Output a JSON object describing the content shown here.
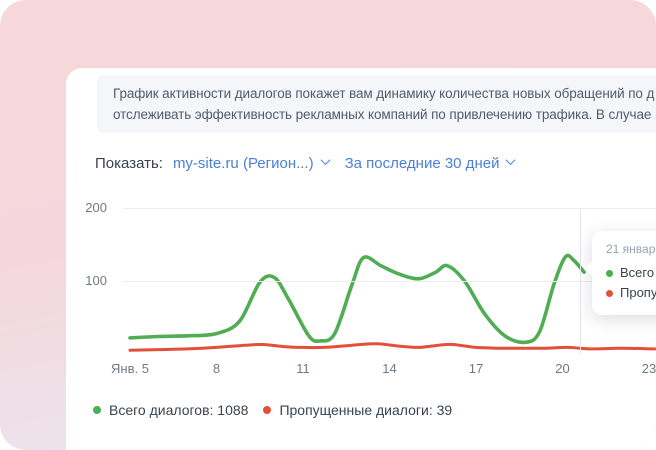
{
  "description": {
    "line1": "График активности диалогов покажет вам динамику количества новых обращений по д",
    "line2": "отслеживать эффективность рекламных компаний по привлечению трафика. В случае"
  },
  "filters": {
    "label": "Показать:",
    "site_selector": "my-site.ru (Регион...)",
    "period_selector": "За последние 30 дней"
  },
  "chart_data": {
    "type": "line",
    "smooth": true,
    "grid": true,
    "legend_position": "bottom",
    "x_axis": {
      "range": [
        5,
        23.2
      ],
      "ticks": [
        {
          "day": 5,
          "label": "Янв. 5"
        },
        {
          "day": 8,
          "label": "8"
        },
        {
          "day": 11,
          "label": "11"
        },
        {
          "day": 14,
          "label": "14"
        },
        {
          "day": 17,
          "label": "17"
        },
        {
          "day": 20,
          "label": "20"
        },
        {
          "day": 23,
          "label": "23"
        }
      ]
    },
    "y_axis": {
      "range": [
        0,
        220
      ],
      "ticks": [
        {
          "value": 200,
          "label": "200"
        },
        {
          "value": 100,
          "label": "100"
        }
      ]
    },
    "hover_line_day": 20.6,
    "series": [
      {
        "name": "Всего диалогов",
        "total": 1088,
        "color": "#50ad53",
        "width": 3.6,
        "points": [
          [
            5,
            22
          ],
          [
            6,
            24
          ],
          [
            7,
            25
          ],
          [
            8,
            28
          ],
          [
            8.8,
            45
          ],
          [
            9.5,
            98
          ],
          [
            10,
            105
          ],
          [
            10.5,
            75
          ],
          [
            11.2,
            25
          ],
          [
            11.6,
            18
          ],
          [
            12.1,
            28
          ],
          [
            12.7,
            95
          ],
          [
            13.1,
            132
          ],
          [
            13.7,
            121
          ],
          [
            14.3,
            110
          ],
          [
            15,
            103
          ],
          [
            15.6,
            112
          ],
          [
            16,
            121
          ],
          [
            16.6,
            100
          ],
          [
            17.3,
            55
          ],
          [
            18,
            25
          ],
          [
            18.7,
            16
          ],
          [
            19.2,
            30
          ],
          [
            19.7,
            95
          ],
          [
            20.1,
            133
          ],
          [
            20.4,
            128
          ],
          [
            20.75,
            112
          ]
        ]
      },
      {
        "name": "Пропущенные диалоги",
        "total": 39,
        "color": "#e2503a",
        "width": 3,
        "points": [
          [
            5,
            5
          ],
          [
            6,
            6
          ],
          [
            7,
            7
          ],
          [
            8,
            9
          ],
          [
            9,
            12
          ],
          [
            9.6,
            13
          ],
          [
            10.4,
            10
          ],
          [
            11,
            9
          ],
          [
            11.7,
            9
          ],
          [
            12.4,
            11
          ],
          [
            13,
            13
          ],
          [
            13.6,
            14
          ],
          [
            14.3,
            11
          ],
          [
            15,
            9
          ],
          [
            15.7,
            12
          ],
          [
            16.2,
            13
          ],
          [
            17,
            9
          ],
          [
            17.8,
            8
          ],
          [
            18.6,
            8
          ],
          [
            19.4,
            8
          ],
          [
            20.2,
            9
          ],
          [
            21,
            7
          ],
          [
            22,
            8
          ],
          [
            23.2,
            7
          ]
        ]
      }
    ]
  },
  "legend": {
    "items": [
      {
        "name": "total-dialogs",
        "color": "#4caf50",
        "text": "Всего диалогов: 1088"
      },
      {
        "name": "missed-dialogs",
        "color": "#e2503a",
        "text": "Пропущенные диалоги: 39"
      }
    ]
  },
  "tooltip": {
    "date": "21 январ",
    "rows": [
      {
        "color": "#4caf50",
        "text": "Всего"
      },
      {
        "color": "#e2503a",
        "text": "Пропу"
      }
    ]
  },
  "colors": {
    "link_blue": "#4b80da",
    "green": "#50ad53",
    "red": "#e2503a",
    "card_bg": "#ffffff",
    "desc_bg": "#f5f6f9",
    "grid": "#ededf0"
  }
}
